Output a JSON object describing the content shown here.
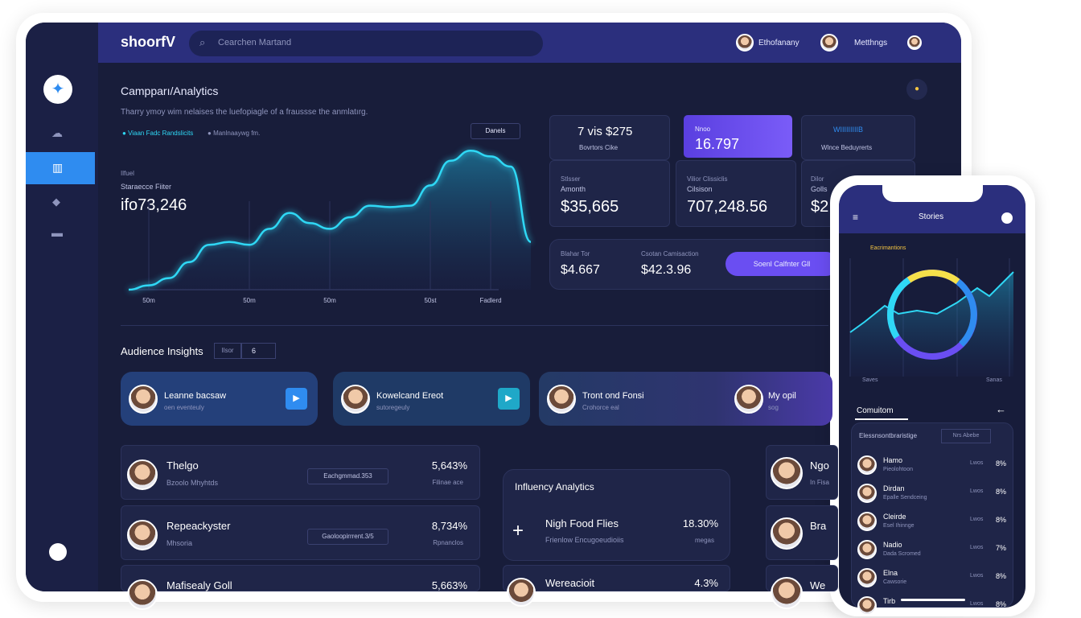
{
  "header": {
    "brand": "shoorfV",
    "search": "Cearchen Martand",
    "users": [
      "Ethofanany",
      "Metthngs"
    ]
  },
  "analytics": {
    "title": "Campparı/Analytics",
    "subtitle": "Tharry ymoy wim nelaises the luefopiagle of a fraussse the anmlatırg.",
    "legend": [
      "Viaan Fadc Randslicits",
      "Manlnaaywg fm."
    ],
    "button": "Danels",
    "small_label": "Ilfuel",
    "stat_label": "Staraecce Fiiter",
    "stat_value": "ifo73,246",
    "chart_data": {
      "type": "line",
      "categories": [
        null,
        "50m",
        null,
        null,
        null,
        null,
        "50m",
        null,
        null,
        null,
        "50m",
        null,
        null,
        null,
        null,
        "50st",
        null,
        null,
        "Fadlerd",
        null,
        null
      ],
      "values": [
        0,
        3,
        8,
        19,
        31,
        33,
        31,
        42,
        53,
        46,
        42,
        50,
        58,
        57,
        58,
        72,
        89,
        96,
        92,
        85,
        33
      ],
      "ylim": [
        0,
        100
      ],
      "color": "#2fd8f5"
    }
  },
  "stats": {
    "top": [
      {
        "value": "7 vis $275",
        "label": "Bovrtors Cike"
      },
      {
        "value": "16.797",
        "label": "Nnoo"
      },
      {
        "value": "WIIIIIIIIIB",
        "label": "Wlnce Beduyrerts"
      }
    ],
    "middle": [
      {
        "label": "Stlsser",
        "sub": "Amonth",
        "value": "$35,665"
      },
      {
        "label": "Vilior Clissiclis",
        "sub": "Cilsison",
        "value": "707,248.56"
      },
      {
        "label": "Dilor",
        "sub": "Golls",
        "value": "$2"
      }
    ],
    "bottom": [
      {
        "label": "Blahar Tor",
        "value": "$4.667"
      },
      {
        "label": "Csotan Camisaction",
        "value": "$42.3.96"
      }
    ],
    "button": "Soenl Calfnter Gll"
  },
  "audience": {
    "title": "Audience Insights",
    "filter": [
      "Ilsor",
      "6"
    ],
    "cards": [
      {
        "name": "Leanne bacsaw",
        "sub": "oen eventeuly"
      },
      {
        "name": "Kowelcand Ereot",
        "sub": "sutoregeuly"
      },
      {
        "name": "Tront ond Fonsi",
        "sub": "Crohorce eal"
      },
      {
        "name": "My opil",
        "sub": "sog"
      }
    ]
  },
  "list": {
    "rows": [
      {
        "name": "Thelgo",
        "sub": "Bzoolo Mhyhtds",
        "tag": "Eachgmmad.353",
        "value": "5,643%",
        "note": "Filinae ace"
      },
      {
        "name": "Repeackyster",
        "sub": "Mhsoria",
        "tag": "Gaoloopirrrent.3/5",
        "value": "8,734%",
        "note": "Rpnanclos"
      },
      {
        "name": "Mafisealy Goll",
        "value": "5,663%"
      }
    ]
  },
  "influence": {
    "title": "Influency Analytics",
    "rows": [
      {
        "name": "Nigh Food Flies",
        "sub": "Frienlow Encugoeudioiis",
        "value": "18.30%",
        "note": "megas"
      },
      {
        "name": "Wereacioit",
        "value": "4.3%"
      }
    ]
  },
  "side": {
    "rows": [
      {
        "name": "Ngo",
        "sub": "In Fisa"
      },
      {
        "name": "Bra"
      },
      {
        "name": "We"
      }
    ]
  },
  "phone": {
    "title": "Stories",
    "legend": "Eacrimantions",
    "x_labels": [
      "Saves",
      "Sanas"
    ],
    "section": "Comuitom",
    "search": "Elessnsontbraristige",
    "button": "Nrs Abebe",
    "rows": [
      {
        "name": "Hamo",
        "sub": "Pieolohtoon",
        "label": "Lwos",
        "value": "8%"
      },
      {
        "name": "Dirdan",
        "sub": "Epalle Sendceing",
        "label": "Lwos",
        "value": "8%"
      },
      {
        "name": "Cleirde",
        "sub": "Esel Ihinnge",
        "label": "Lwos",
        "value": "8%"
      },
      {
        "name": "Nadio",
        "sub": "Dada Scromed",
        "label": "Lwos",
        "value": "7%"
      },
      {
        "name": "Elna",
        "sub": "Cawsorie",
        "label": "Lwos",
        "value": "8%"
      },
      {
        "name": "Tirb",
        "label": "Lwos",
        "value": "8%"
      }
    ]
  }
}
